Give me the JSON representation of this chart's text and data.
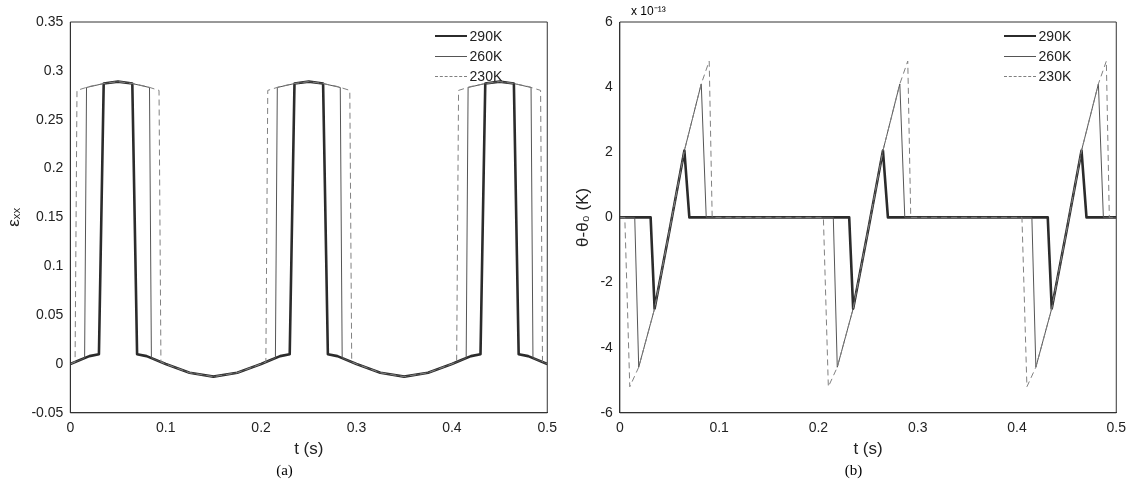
{
  "chart_data": [
    {
      "type": "line",
      "xlabel": "t (s)",
      "ylabel": "εₓₓ",
      "xlim": [
        0,
        0.5
      ],
      "xticks": [
        0,
        0.1,
        0.2,
        0.3,
        0.4,
        0.5
      ],
      "ylim": [
        -0.05,
        0.35
      ],
      "yticks": [
        -0.05,
        0,
        0.05,
        0.1,
        0.15,
        0.2,
        0.25,
        0.3,
        0.35
      ],
      "grid": false,
      "legend": "top right",
      "marker": "none",
      "annotations": [
        "(a)"
      ],
      "series": [
        {
          "name": "290K",
          "color": "#2b2b2b",
          "line_style": "solid",
          "x": [
            0,
            0.01,
            0.02,
            0.03,
            0.035,
            0.05,
            0.065,
            0.07,
            0.08,
            0.1,
            0.125,
            0.15,
            0.175,
            0.2,
            0.21,
            0.22,
            0.23,
            0.235,
            0.25,
            0.265,
            0.27,
            0.28,
            0.3,
            0.325,
            0.35,
            0.375,
            0.4,
            0.41,
            0.42,
            0.43,
            0.435,
            0.45,
            0.465,
            0.47,
            0.48,
            0.5
          ],
          "values": [
            0,
            0.004,
            0.008,
            0.01,
            0.287,
            0.289,
            0.287,
            0.01,
            0.008,
            0,
            -0.009,
            -0.013,
            -0.009,
            0,
            0.004,
            0.008,
            0.01,
            0.287,
            0.289,
            0.287,
            0.01,
            0.008,
            0,
            -0.009,
            -0.013,
            -0.009,
            0,
            0.004,
            0.008,
            0.01,
            0.287,
            0.289,
            0.287,
            0.01,
            0.008,
            0
          ]
        },
        {
          "name": "260K",
          "color": "#555555",
          "line_style": "solid",
          "x": [
            0,
            0.01,
            0.015,
            0.017,
            0.035,
            0.05,
            0.065,
            0.083,
            0.085,
            0.1,
            0.125,
            0.15,
            0.175,
            0.2,
            0.21,
            0.215,
            0.217,
            0.235,
            0.25,
            0.265,
            0.283,
            0.285,
            0.3,
            0.325,
            0.35,
            0.375,
            0.4,
            0.41,
            0.415,
            0.417,
            0.435,
            0.45,
            0.465,
            0.483,
            0.485,
            0.5
          ],
          "values": [
            0,
            0.004,
            0.006,
            0.283,
            0.287,
            0.289,
            0.287,
            0.283,
            0.006,
            0,
            -0.009,
            -0.013,
            -0.009,
            0,
            0.004,
            0.006,
            0.283,
            0.287,
            0.289,
            0.287,
            0.283,
            0.006,
            0,
            -0.009,
            -0.013,
            -0.009,
            0,
            0.004,
            0.006,
            0.283,
            0.287,
            0.289,
            0.287,
            0.283,
            0.006,
            0
          ]
        },
        {
          "name": "230K",
          "color": "#808080",
          "line_style": "dashed",
          "x": [
            0,
            0.005,
            0.007,
            0.02,
            0.035,
            0.05,
            0.065,
            0.08,
            0.093,
            0.095,
            0.1,
            0.125,
            0.15,
            0.175,
            0.2,
            0.205,
            0.207,
            0.22,
            0.235,
            0.25,
            0.265,
            0.28,
            0.293,
            0.295,
            0.3,
            0.325,
            0.35,
            0.375,
            0.4,
            0.405,
            0.407,
            0.42,
            0.435,
            0.45,
            0.465,
            0.48,
            0.493,
            0.495,
            0.5
          ],
          "values": [
            0,
            0.002,
            0.28,
            0.284,
            0.287,
            0.289,
            0.287,
            0.284,
            0.28,
            0.002,
            0,
            -0.009,
            -0.013,
            -0.009,
            0,
            0.002,
            0.28,
            0.284,
            0.287,
            0.289,
            0.287,
            0.284,
            0.28,
            0.002,
            0,
            -0.009,
            -0.013,
            -0.009,
            0,
            0.002,
            0.28,
            0.284,
            0.287,
            0.289,
            0.287,
            0.284,
            0.28,
            0.002,
            0
          ]
        }
      ]
    },
    {
      "type": "line",
      "xlabel": "t (s)",
      "ylabel": "θ-θ₀ (K)",
      "xlim": [
        0,
        0.5
      ],
      "xticks": [
        0,
        0.1,
        0.2,
        0.3,
        0.4,
        0.5
      ],
      "ylim": [
        -6,
        6
      ],
      "yticks": [
        -6,
        -4,
        -2,
        0,
        2,
        4,
        6
      ],
      "grid": false,
      "legend": "top right",
      "marker": "none",
      "annotations": [
        "x 10⁻¹³",
        "(b)"
      ],
      "series": [
        {
          "name": "290K",
          "color": "#2b2b2b",
          "line_style": "solid",
          "x": [
            0,
            0.031,
            0.035,
            0.05,
            0.065,
            0.07,
            0.231,
            0.235,
            0.25,
            0.265,
            0.27,
            0.431,
            0.435,
            0.45,
            0.465,
            0.47,
            0.5
          ],
          "values": [
            0,
            0,
            -2.8,
            -0.4,
            2.05,
            0,
            0,
            -2.8,
            -0.4,
            2.05,
            0,
            0,
            -2.8,
            -0.4,
            2.05,
            0,
            0
          ]
        },
        {
          "name": "260K",
          "color": "#555555",
          "line_style": "solid",
          "x": [
            0,
            0.015,
            0.019,
            0.035,
            0.05,
            0.065,
            0.082,
            0.087,
            0.215,
            0.219,
            0.235,
            0.25,
            0.265,
            0.282,
            0.287,
            0.415,
            0.419,
            0.435,
            0.45,
            0.465,
            0.482,
            0.487,
            0.5
          ],
          "values": [
            0,
            0,
            -4.6,
            -2.8,
            -0.4,
            2.05,
            4.1,
            0,
            0,
            -4.6,
            -2.8,
            -0.4,
            2.05,
            4.1,
            0,
            0,
            -4.6,
            -2.8,
            -0.4,
            2.05,
            4.1,
            0,
            0
          ]
        },
        {
          "name": "230K",
          "color": "#808080",
          "line_style": "dashed",
          "x": [
            0,
            0.005,
            0.01,
            0.019,
            0.035,
            0.05,
            0.065,
            0.082,
            0.09,
            0.093,
            0.205,
            0.21,
            0.219,
            0.235,
            0.25,
            0.265,
            0.282,
            0.29,
            0.293,
            0.405,
            0.41,
            0.419,
            0.435,
            0.45,
            0.465,
            0.482,
            0.49,
            0.493,
            0.5
          ],
          "values": [
            0,
            0,
            -5.2,
            -4.6,
            -2.8,
            -0.4,
            2.05,
            4.1,
            4.8,
            0,
            0,
            -5.2,
            -4.6,
            -2.8,
            -0.4,
            2.05,
            4.1,
            4.8,
            0,
            0,
            -5.2,
            -4.6,
            -2.8,
            -0.4,
            2.05,
            4.1,
            4.8,
            0,
            0
          ]
        }
      ]
    }
  ]
}
